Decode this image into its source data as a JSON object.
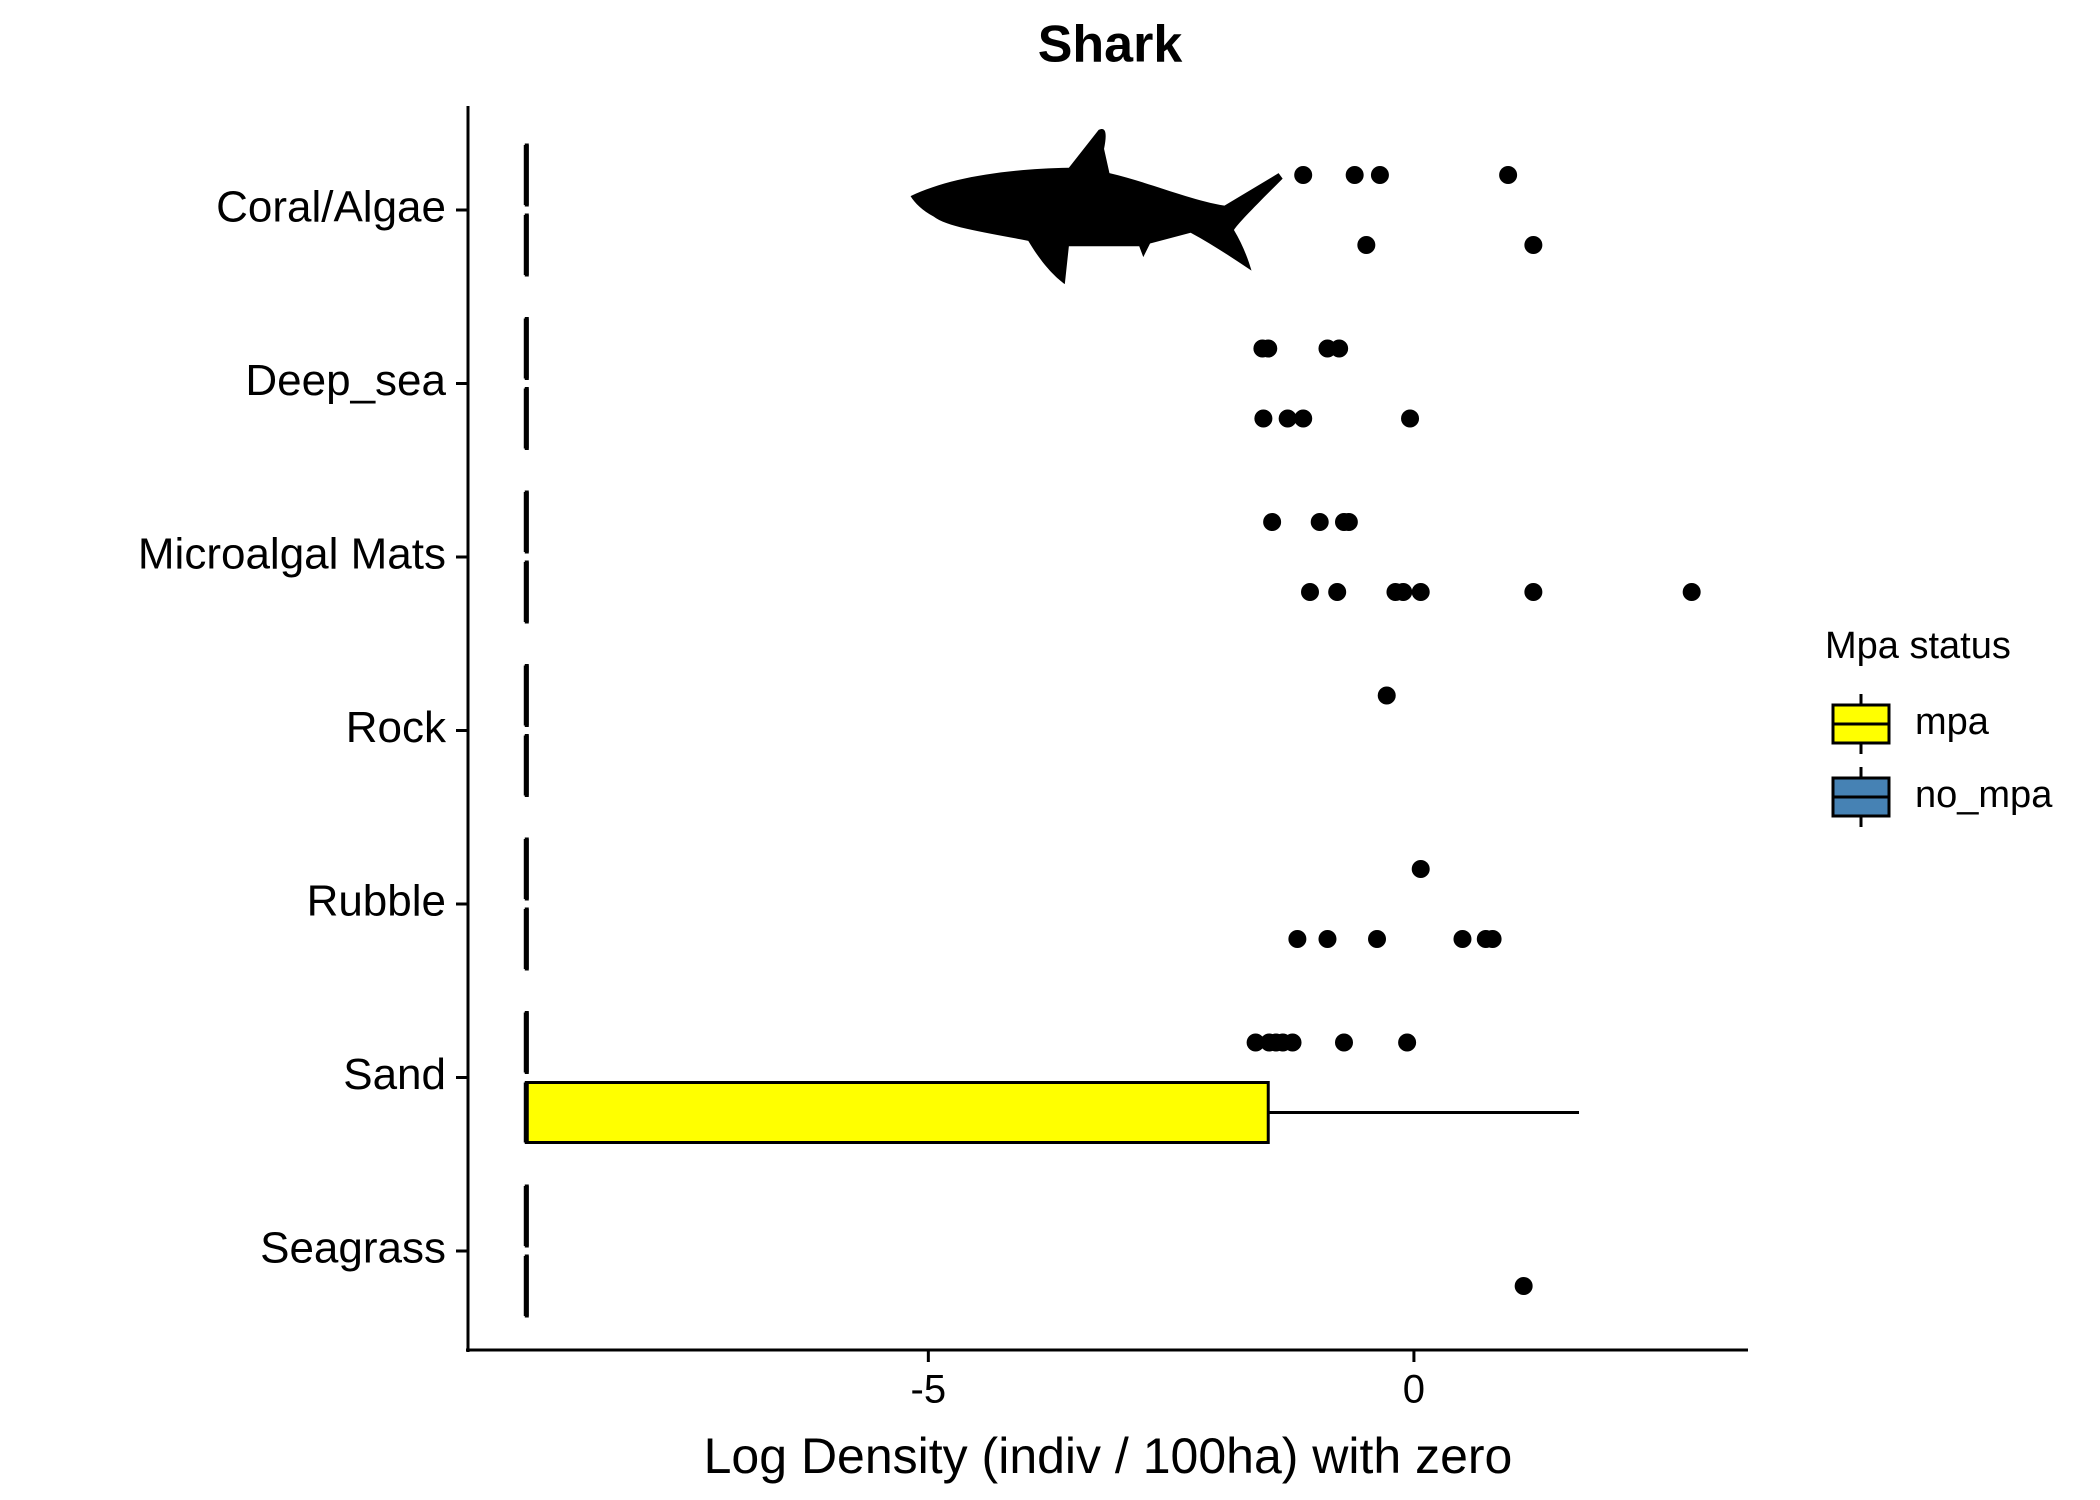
{
  "chart_data": {
    "type": "boxplot",
    "orientation": "horizontal",
    "title": "Shark",
    "x_label": "Log Density (indiv / 100ha) with zero",
    "legend_title": "Mpa status",
    "legend_position": "right",
    "categories": [
      "Coral/Algae",
      "Deep_sea",
      "Microalgal Mats",
      "Rock",
      "Rubble",
      "Sand",
      "Seagrass"
    ],
    "xlim": [
      -9.74,
      3.44
    ],
    "xticks": [
      -5,
      0
    ],
    "series": [
      {
        "name": "mpa",
        "color": "#ffff00",
        "boxes": [
          {
            "whislo": -9.14,
            "q1": -9.14,
            "median": -9.14,
            "q3": -9.14,
            "whishi": -9.14,
            "outliers": [
              -0.49,
              1.23
            ]
          },
          {
            "whislo": -9.14,
            "q1": -9.14,
            "median": -9.14,
            "q3": -9.14,
            "whishi": -9.14,
            "outliers": [
              -1.55,
              -1.3,
              -1.14,
              -0.04
            ]
          },
          {
            "whislo": -9.14,
            "q1": -9.14,
            "median": -9.14,
            "q3": -9.14,
            "whishi": -9.14,
            "outliers": [
              -1.07,
              -0.79,
              -0.19,
              -0.11,
              0.07,
              1.23,
              2.86
            ]
          },
          {
            "whislo": -9.14,
            "q1": -9.14,
            "median": -9.14,
            "q3": -9.14,
            "whishi": -9.14,
            "outliers": []
          },
          {
            "whislo": -9.14,
            "q1": -9.14,
            "median": -9.14,
            "q3": -9.14,
            "whishi": -9.14,
            "outliers": [
              -1.2,
              -0.89,
              -0.38,
              0.5,
              0.74,
              0.81
            ]
          },
          {
            "whislo": -9.14,
            "q1": -9.14,
            "median": -9.14,
            "q3": -1.5,
            "whishi": 1.7,
            "outliers": []
          },
          {
            "whislo": -9.14,
            "q1": -9.14,
            "median": -9.14,
            "q3": -9.14,
            "whishi": -9.14,
            "outliers": [
              1.13
            ]
          }
        ]
      },
      {
        "name": "no_mpa",
        "color": "#4682b4",
        "boxes": [
          {
            "whislo": -9.14,
            "q1": -9.14,
            "median": -9.14,
            "q3": -9.14,
            "whishi": -9.14,
            "outliers": [
              -1.14,
              -0.61,
              -0.35,
              0.97
            ]
          },
          {
            "whislo": -9.14,
            "q1": -9.14,
            "median": -9.14,
            "q3": -9.14,
            "whishi": -9.14,
            "outliers": [
              -1.56,
              -1.5,
              -0.89,
              -0.77
            ]
          },
          {
            "whislo": -9.14,
            "q1": -9.14,
            "median": -9.14,
            "q3": -9.14,
            "whishi": -9.14,
            "outliers": [
              -1.46,
              -0.97,
              -0.72,
              -0.67
            ]
          },
          {
            "whislo": -9.14,
            "q1": -9.14,
            "median": -9.14,
            "q3": -9.14,
            "whishi": -9.14,
            "outliers": [
              -0.28
            ]
          },
          {
            "whislo": -9.14,
            "q1": -9.14,
            "median": -9.14,
            "q3": -9.14,
            "whishi": -9.14,
            "outliers": [
              0.07
            ]
          },
          {
            "whislo": -9.14,
            "q1": -9.14,
            "median": -9.14,
            "q3": -9.14,
            "whishi": -9.14,
            "outliers": [
              -1.63,
              -1.49,
              -1.42,
              -1.35,
              -1.25,
              -0.72,
              -0.07
            ]
          },
          {
            "whislo": -9.14,
            "q1": -9.14,
            "median": -9.14,
            "q3": -9.14,
            "whishi": -9.14,
            "outliers": []
          }
        ]
      }
    ]
  }
}
